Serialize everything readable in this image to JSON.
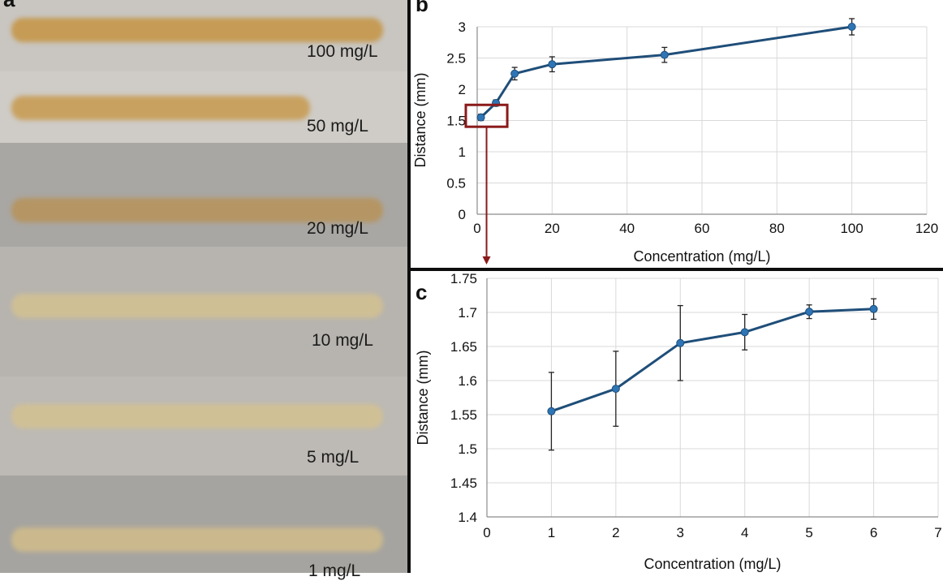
{
  "panels": {
    "a": "a",
    "b": "b",
    "c": "c"
  },
  "photo": {
    "strips": [
      {
        "label": "100 mg/L",
        "bg": "#c9c6c1",
        "band": "#c59b55"
      },
      {
        "label": "50 mg/L",
        "bg": "#cfccc7",
        "band": "#c8a160"
      },
      {
        "label": "20 mg/L",
        "bg": "#a9a7a3",
        "band": "#b59563"
      },
      {
        "label": "10 mg/L",
        "bg": "#b7b4af",
        "band": "#cfbf95"
      },
      {
        "label": "5 mg/L",
        "bg": "#bdbab5",
        "band": "#d0c096"
      },
      {
        "label": "1 mg/L",
        "bg": "#a6a4a0",
        "band": "#cbb98d"
      }
    ]
  },
  "chart_data": [
    {
      "panel": "b",
      "type": "line",
      "xlabel": "Concentration (mg/L)",
      "ylabel": "Distance (mm)",
      "xlim": [
        0,
        120
      ],
      "ylim": [
        0,
        3
      ],
      "xticks": [
        "0",
        "20",
        "40",
        "60",
        "80",
        "100",
        "120"
      ],
      "yticks": [
        "0",
        "0.5",
        "1",
        "1.5",
        "2",
        "2.5",
        "3"
      ],
      "grid": true,
      "color": "#1f4e79",
      "points": [
        {
          "x": 1,
          "y": 1.55,
          "err": 0.05
        },
        {
          "x": 5,
          "y": 1.78,
          "err": 0.05
        },
        {
          "x": 10,
          "y": 2.25,
          "err": 0.1
        },
        {
          "x": 20,
          "y": 2.4,
          "err": 0.12
        },
        {
          "x": 50,
          "y": 2.55,
          "err": 0.12
        },
        {
          "x": 100,
          "y": 3.0,
          "err": 0.13
        }
      ],
      "highlight_box": {
        "x_from": 0,
        "x_to": 5,
        "y_from": 1.4,
        "y_to": 1.75
      }
    },
    {
      "panel": "c",
      "type": "line",
      "xlabel": "Concentration (mg/L)",
      "ylabel": "Distance (mm)",
      "xlim": [
        0,
        7
      ],
      "ylim": [
        1.4,
        1.75
      ],
      "xticks": [
        "0",
        "1",
        "2",
        "3",
        "4",
        "5",
        "6",
        "7"
      ],
      "yticks": [
        "1.4",
        "1.45",
        "1.5",
        "1.55",
        "1.6",
        "1.65",
        "1.7",
        "1.75"
      ],
      "grid": true,
      "color": "#1f4e79",
      "points": [
        {
          "x": 1,
          "y": 1.555,
          "err": 0.057
        },
        {
          "x": 2,
          "y": 1.588,
          "err": 0.055
        },
        {
          "x": 3,
          "y": 1.655,
          "err": 0.055
        },
        {
          "x": 4,
          "y": 1.671,
          "err": 0.026
        },
        {
          "x": 5,
          "y": 1.701,
          "err": 0.01
        },
        {
          "x": 6,
          "y": 1.705,
          "err": 0.015
        }
      ]
    }
  ]
}
